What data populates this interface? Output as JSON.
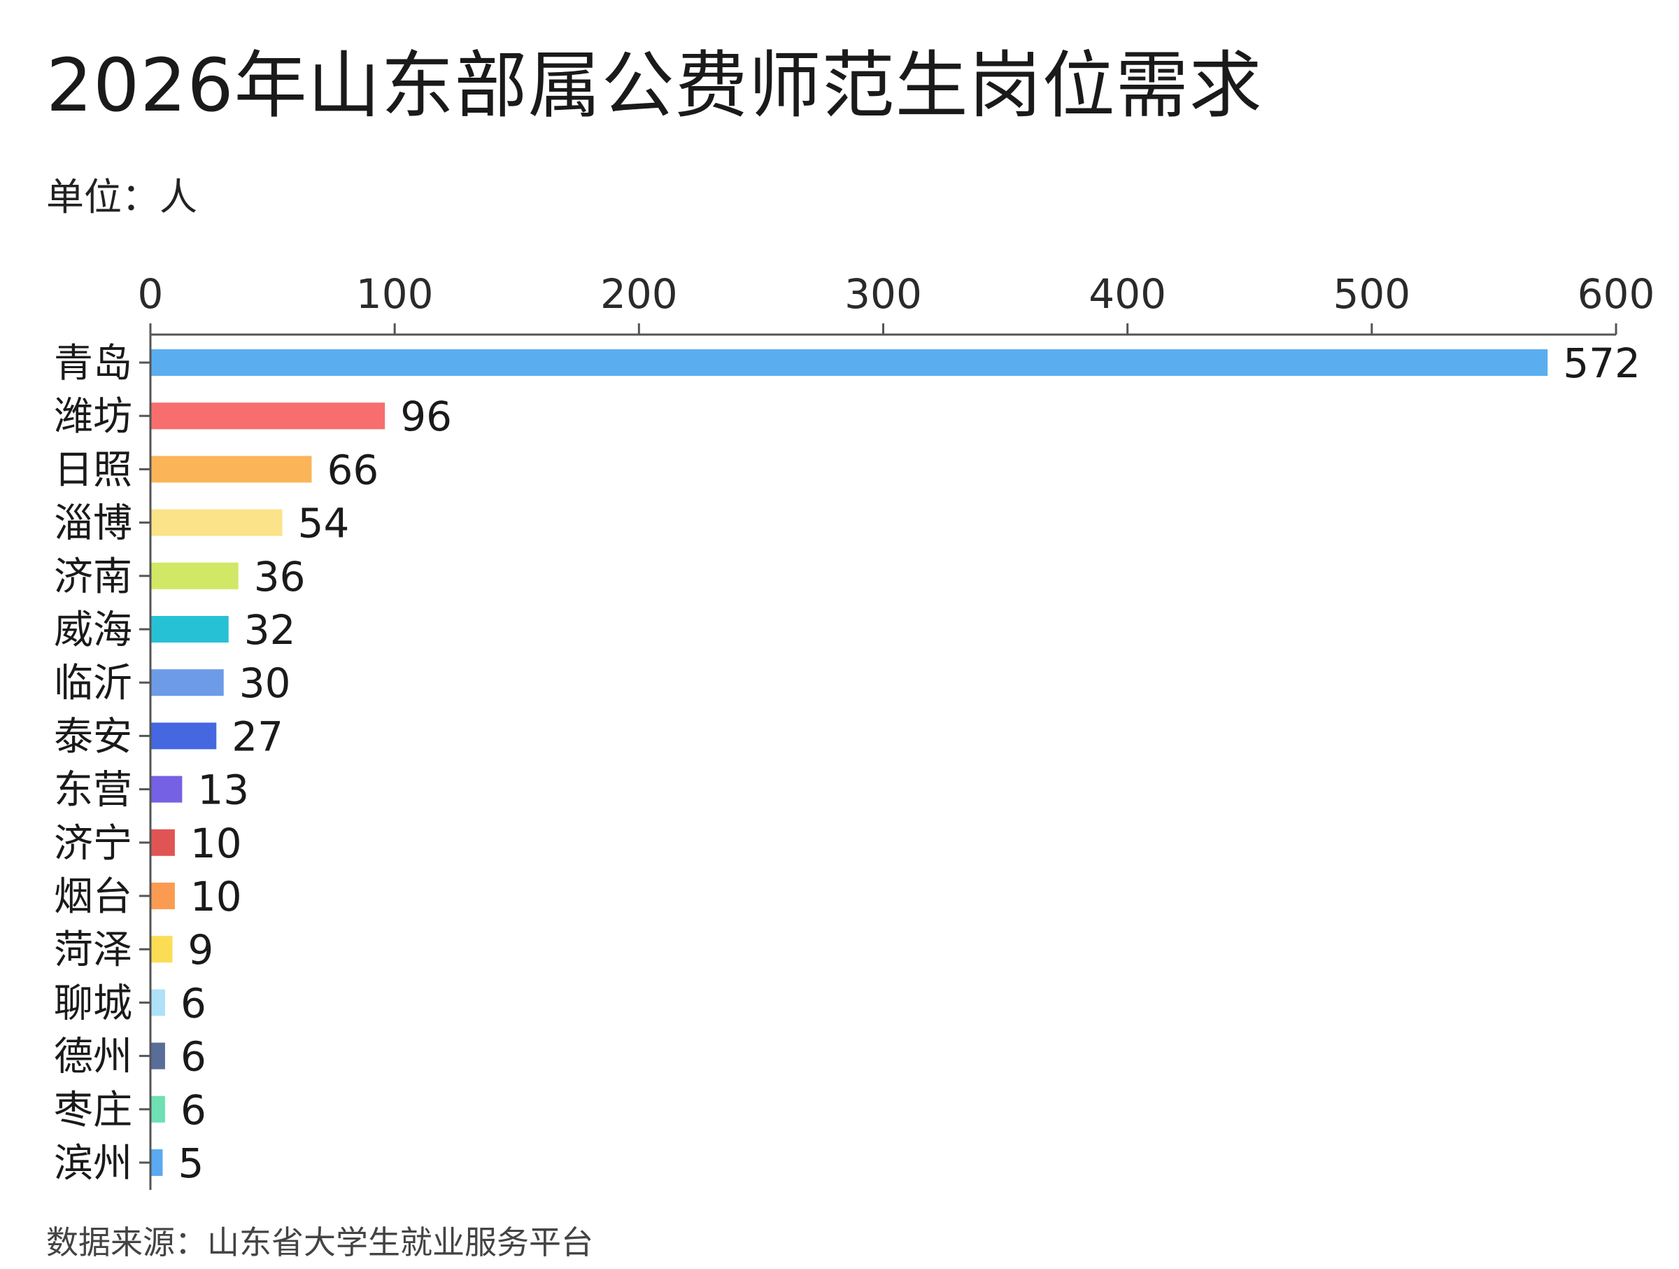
{
  "chart_data": {
    "type": "bar",
    "orientation": "horizontal",
    "title": "2026年山东部属公费师范生岗位需求",
    "unit": "单位：人",
    "source": "数据来源：山东省大学生就业服务平台",
    "categories": [
      "青岛",
      "潍坊",
      "日照",
      "淄博",
      "济南",
      "威海",
      "临沂",
      "泰安",
      "东营",
      "济宁",
      "烟台",
      "菏泽",
      "聊城",
      "德州",
      "枣庄",
      "滨州"
    ],
    "values": [
      572,
      96,
      66,
      54,
      36,
      32,
      30,
      27,
      13,
      10,
      10,
      9,
      6,
      6,
      6,
      5
    ],
    "colors": [
      "#5aaef0",
      "#f86e6e",
      "#fbb457",
      "#fbe38a",
      "#d0e865",
      "#27c1d6",
      "#6d9be8",
      "#4568e0",
      "#7561e3",
      "#e15454",
      "#fb9b52",
      "#fbdd55",
      "#ade1f8",
      "#596d99",
      "#6fe0b3",
      "#59aaf0"
    ],
    "xlim": [
      0,
      600
    ],
    "xticks": [
      0,
      100,
      200,
      300,
      400,
      500,
      600
    ],
    "axis_position": "top",
    "grid": false,
    "legend": "none",
    "xlabel": "",
    "ylabel": ""
  }
}
